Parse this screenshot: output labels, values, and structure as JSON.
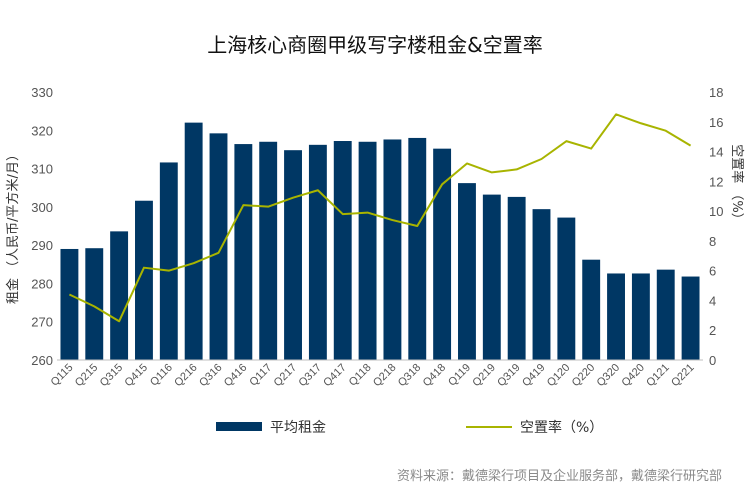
{
  "chart_data": {
    "type": "bar+line",
    "title": "上海核心商圈甲级写字楼租金&空置率",
    "categories": [
      "Q115",
      "Q215",
      "Q315",
      "Q415",
      "Q116",
      "Q216",
      "Q316",
      "Q416",
      "Q117",
      "Q217",
      "Q317",
      "Q417",
      "Q118",
      "Q218",
      "Q318",
      "Q418",
      "Q119",
      "Q219",
      "Q319",
      "Q419",
      "Q120",
      "Q220",
      "Q320",
      "Q420",
      "Q121",
      "Q221"
    ],
    "series": [
      {
        "name": "平均租金",
        "type": "bar",
        "axis": "left",
        "color": "#003764",
        "values": [
          289,
          289.2,
          293.6,
          301.6,
          311.6,
          322,
          319.2,
          316.4,
          317,
          314.8,
          316.2,
          317.2,
          317,
          317.6,
          318,
          315.2,
          306.2,
          303.2,
          302.6,
          299.4,
          297.2,
          286.2,
          282.6,
          282.6,
          283.6,
          281.8
        ]
      },
      {
        "name": "空置率（%）",
        "type": "line",
        "axis": "right",
        "color": "#a8b400",
        "values": [
          4.4,
          3.6,
          2.6,
          6.2,
          6.0,
          6.5,
          7.2,
          10.4,
          10.3,
          10.9,
          11.4,
          9.8,
          9.9,
          9.4,
          9.0,
          11.8,
          13.2,
          12.6,
          12.8,
          13.5,
          14.7,
          14.2,
          16.5,
          15.9,
          15.4,
          14.4
        ]
      }
    ],
    "ylabel_left": "租金 （人民币/平方米/月）",
    "ylabel_right": "空置率 （%）",
    "ylim_left": [
      260,
      330
    ],
    "yticks_left": [
      "260",
      "270",
      "280",
      "290",
      "300",
      "310",
      "320",
      "330"
    ],
    "ylim_right": [
      0,
      18
    ],
    "yticks_right": [
      "0",
      "2",
      "4",
      "6",
      "8",
      "10",
      "12",
      "14",
      "16",
      "18"
    ],
    "grid": false,
    "legend_position": "bottom-center"
  },
  "legend": {
    "bar_label": "平均租金",
    "line_label": "空置率（%）"
  },
  "source_text": "资料来源：戴德梁行项目及企业服务部，戴德梁行研究部"
}
